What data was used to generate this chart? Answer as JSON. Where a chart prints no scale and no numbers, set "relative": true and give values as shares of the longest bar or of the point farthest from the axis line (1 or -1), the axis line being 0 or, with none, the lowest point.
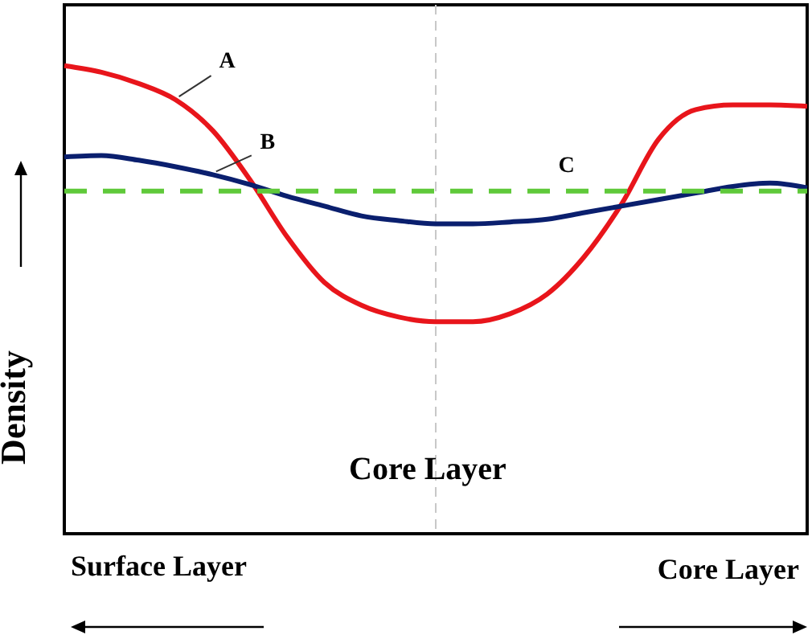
{
  "chart_data": {
    "type": "line",
    "relative": true,
    "ylabel": "Density",
    "legend": false,
    "grid": false,
    "marker": "none",
    "categories": [
      null,
      null,
      null,
      null,
      null,
      null,
      null,
      null,
      null,
      null,
      null,
      null,
      null,
      null,
      null,
      null,
      null,
      null,
      null,
      null,
      null
    ],
    "series": [
      {
        "name": "A",
        "color": "#e8151b",
        "line_style": "solid",
        "values": [
          1,
          0.986,
          0.962,
          0.927,
          0.861,
          0.756,
          0.634,
          0.537,
          0.488,
          0.463,
          0.453,
          0.453,
          0.47,
          0.512,
          0.592,
          0.704,
          0.843,
          0.906,
          0.916,
          0.916,
          0.913
        ]
      },
      {
        "name": "B",
        "color": "#0a1f6e",
        "line_style": "solid",
        "values": [
          0.805,
          0.808,
          0.798,
          0.784,
          0.767,
          0.746,
          0.721,
          0.7,
          0.679,
          0.669,
          0.662,
          0.662,
          0.666,
          0.672,
          0.686,
          0.7,
          0.714,
          0.728,
          0.742,
          0.749,
          0.739
        ]
      },
      {
        "name": "C",
        "color": "#5fc93a",
        "line_style": "dashed",
        "values": [
          0.732,
          0.732,
          0.732,
          0.732,
          0.732,
          0.732,
          0.732,
          0.732,
          0.732,
          0.732,
          0.732,
          0.732,
          0.732,
          0.732,
          0.732,
          0.732,
          0.732,
          0.732,
          0.732,
          0.732,
          0.732
        ]
      }
    ],
    "annotations": [
      "Core Layer",
      "Surface Layer",
      "Core Layer"
    ]
  }
}
